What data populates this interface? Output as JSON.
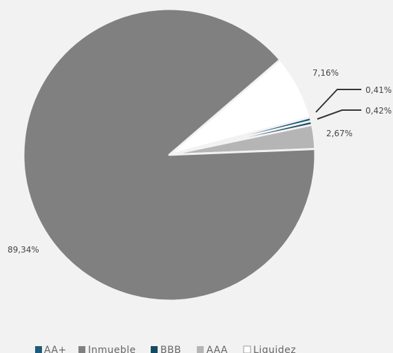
{
  "chart_data": {
    "type": "pie",
    "slices": [
      {
        "name": "AA+",
        "value": 0.41,
        "label": "0,41%",
        "color": "#1f5a78"
      },
      {
        "name": "Inmueble",
        "value": 89.34,
        "label": "89,34%",
        "color": "#808080"
      },
      {
        "name": "BBB",
        "value": 0.42,
        "label": "0,42%",
        "color": "#164a62"
      },
      {
        "name": "AAA",
        "value": 2.67,
        "label": "2,67%",
        "color": "#b5b5b5"
      },
      {
        "name": "Liquidez",
        "value": 7.16,
        "label": "7,16%",
        "color": "#ffffff"
      }
    ],
    "legend": {
      "placement": "bottom",
      "items": [
        "AA+",
        "Inmueble",
        "BBB",
        "AAA",
        "Liquidez"
      ]
    }
  }
}
